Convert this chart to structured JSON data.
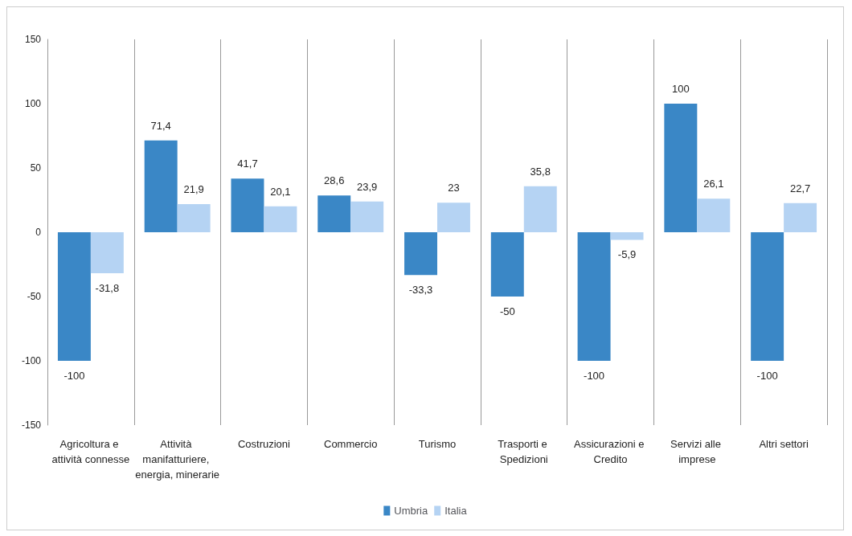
{
  "chart_data": {
    "type": "bar",
    "categories": [
      "Agricoltura e attività connesse",
      "Attività manifatturiere, energia, minerarie",
      "Costruzioni",
      "Commercio",
      "Turismo",
      "Trasporti e Spedizioni",
      "Assicurazioni e Credito",
      "Servizi alle imprese",
      "Altri settori"
    ],
    "series": [
      {
        "name": "Umbria",
        "color": "#3a87c6",
        "values": [
          -100,
          71.4,
          41.7,
          28.6,
          -33.3,
          -50,
          -100,
          100,
          -100
        ],
        "value_labels": [
          "-100",
          "71,4",
          "41,7",
          "28,6",
          "-33,3",
          "-50",
          "-100",
          "100",
          "-100"
        ]
      },
      {
        "name": "Italia",
        "color": "#b5d3f3",
        "values": [
          -31.8,
          21.9,
          20.1,
          23.9,
          23,
          35.8,
          -5.9,
          26.1,
          22.7
        ],
        "value_labels": [
          "-31,8",
          "21,9",
          "20,1",
          "23,9",
          "23",
          "35,8",
          "-5,9",
          "26,1",
          "22,7"
        ]
      }
    ],
    "ylim": [
      -150,
      150
    ],
    "yticks": [
      -150,
      -100,
      -50,
      0,
      50,
      100,
      150
    ],
    "grid": "x",
    "legend": "bottom"
  }
}
